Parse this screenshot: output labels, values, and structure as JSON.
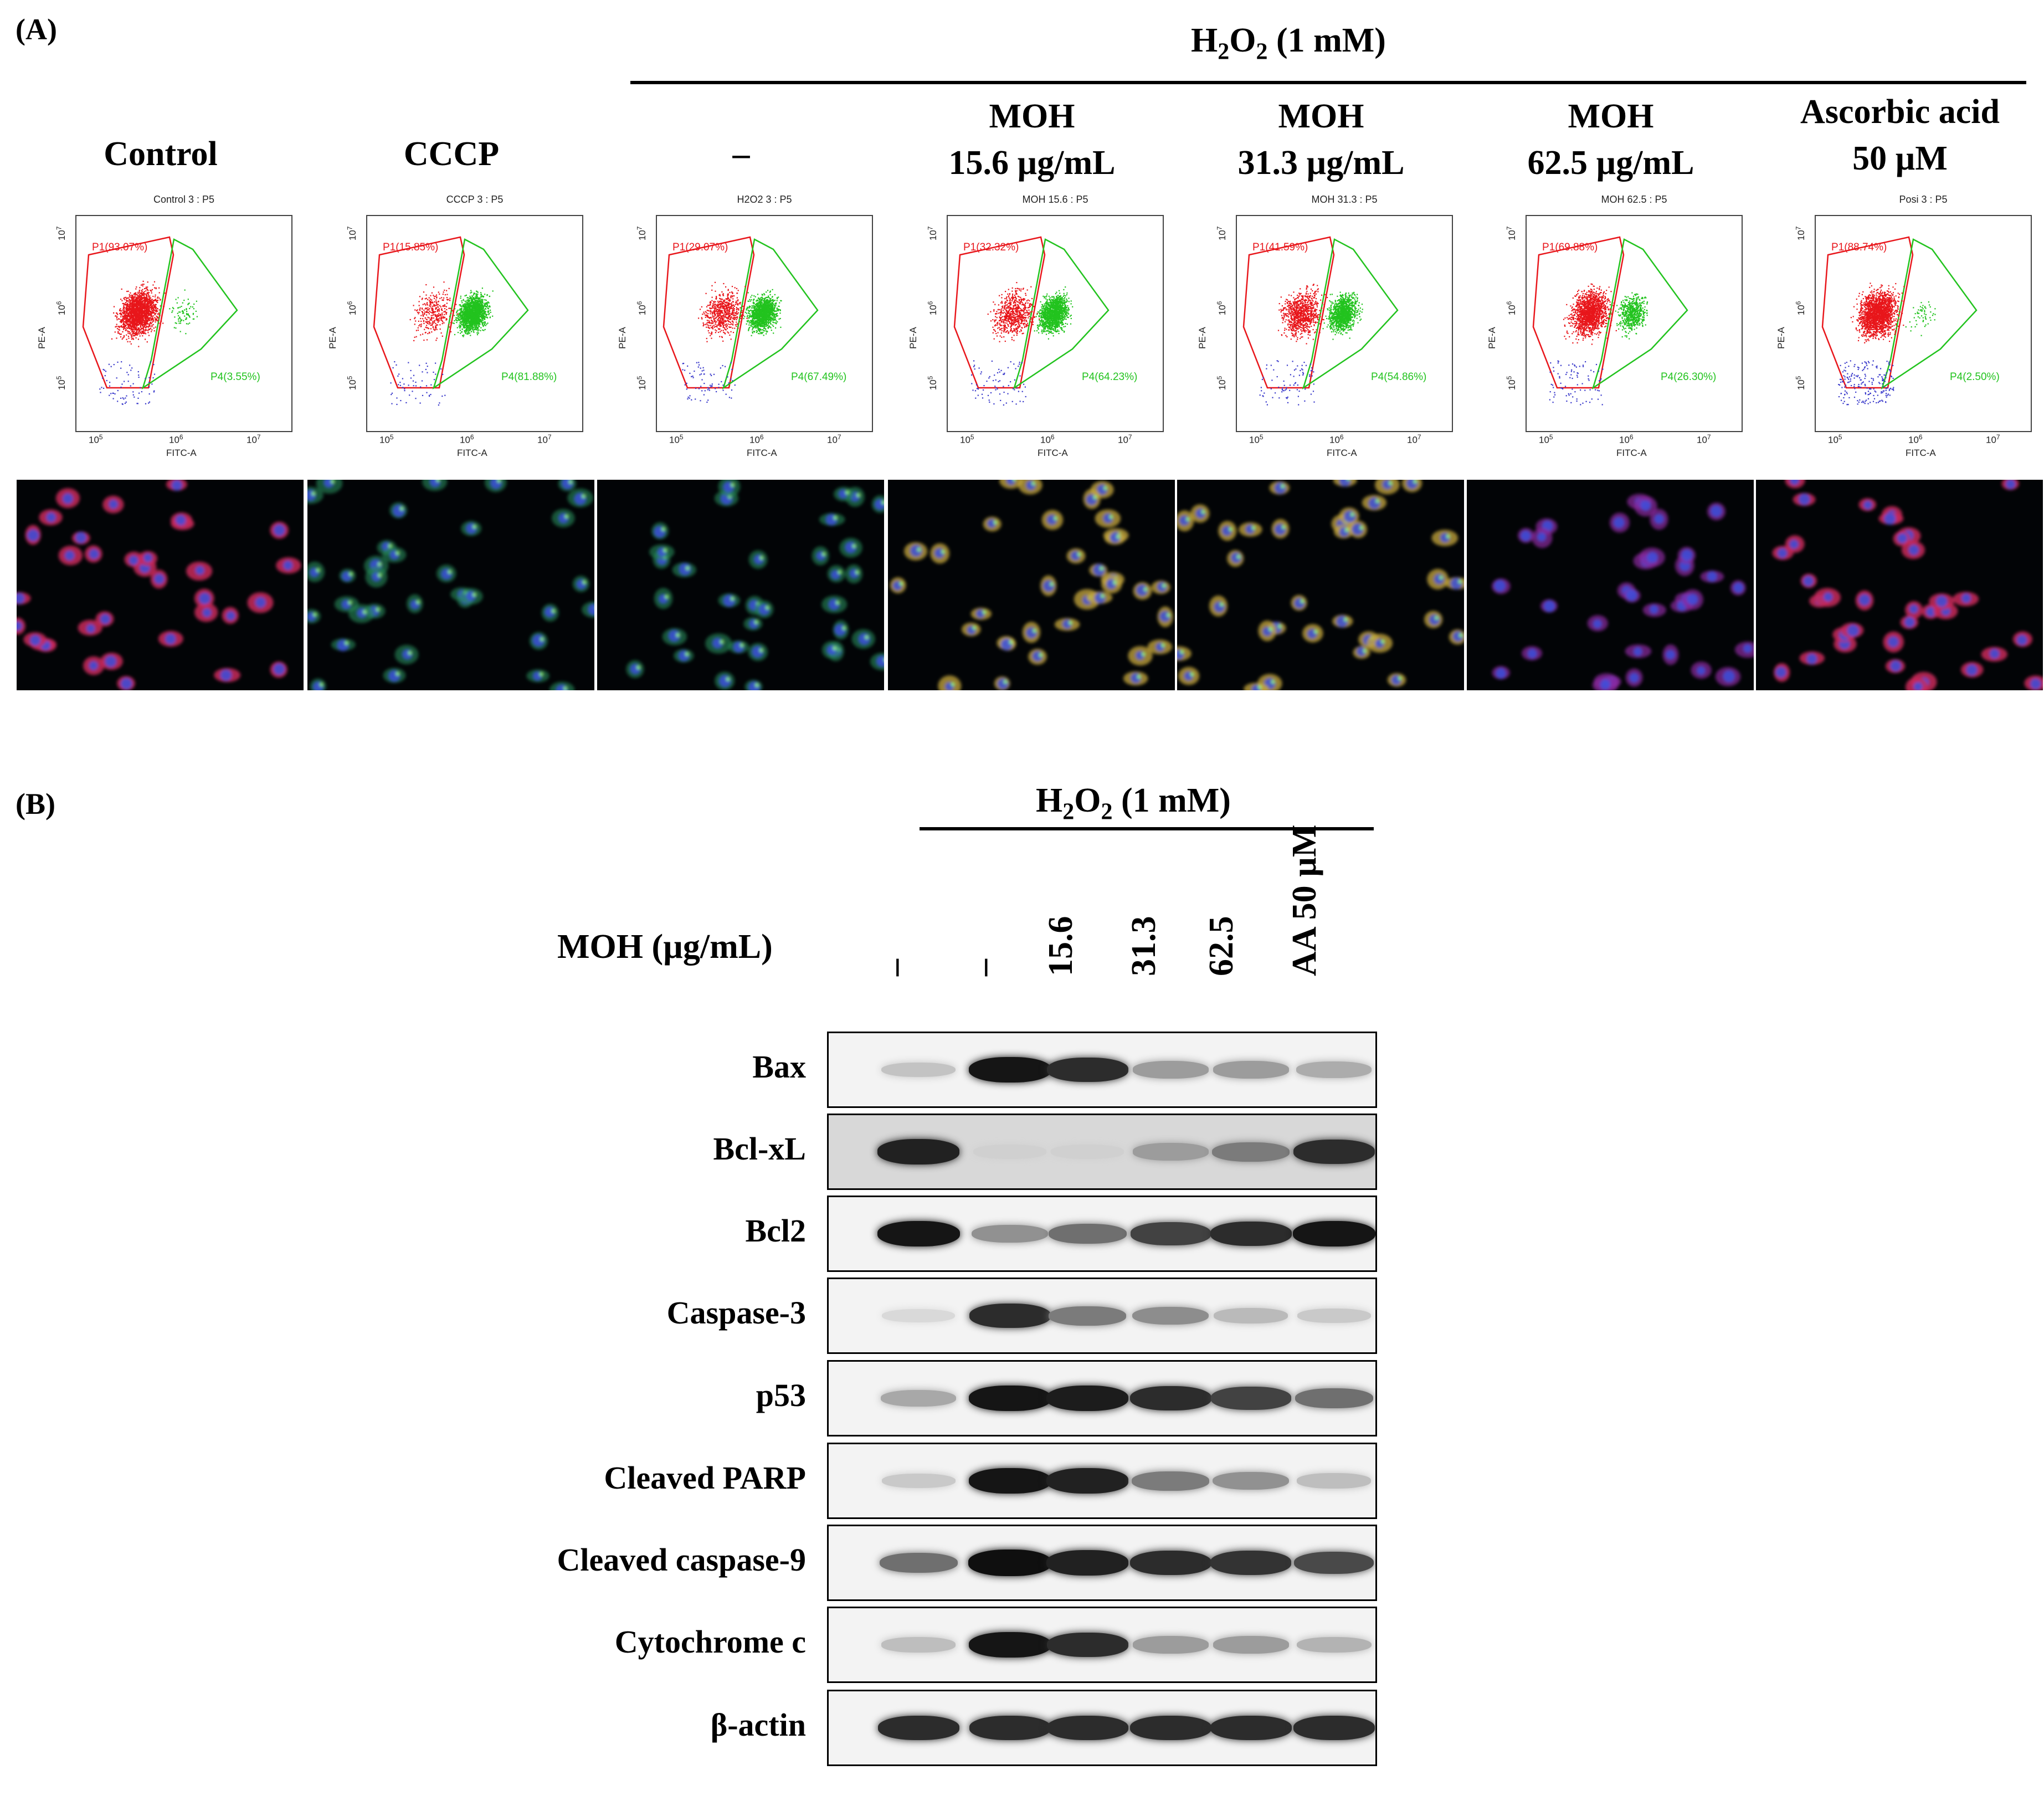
{
  "panel_a": {
    "label": "(A)",
    "h2o2_prefix": "H",
    "h2o2_sub1": "2",
    "h2o2_mid": "O",
    "h2o2_sub2": "2",
    "h2o2_suffix": " (1 mM)",
    "columns": [
      {
        "line1": "Control",
        "line2": "",
        "plot_title": "Control 3 : P5",
        "p1": "P1(93.07%)",
        "p4": "P4(3.55%)",
        "red_fraction": 0.9307,
        "green_fraction": 0.0355
      },
      {
        "line1": "CCCP",
        "line2": "",
        "plot_title": "CCCP 3 : P5",
        "p1": "P1(15.85%)",
        "p4": "P4(81.88%)",
        "red_fraction": 0.1585,
        "green_fraction": 0.8188
      },
      {
        "line1": "–",
        "line2": "",
        "plot_title": "H2O2 3 : P5",
        "p1": "P1(29.07%)",
        "p4": "P4(67.49%)",
        "red_fraction": 0.2907,
        "green_fraction": 0.6749
      },
      {
        "line1": "MOH",
        "line2": "15.6 µg/mL",
        "plot_title": "MOH 15.6 : P5",
        "p1": "P1(32.32%)",
        "p4": "P4(64.23%)",
        "red_fraction": 0.3232,
        "green_fraction": 0.6423
      },
      {
        "line1": "MOH",
        "line2": "31.3 µg/mL",
        "plot_title": "MOH 31.3 : P5",
        "p1": "P1(41.59%)",
        "p4": "P4(54.86%)",
        "red_fraction": 0.4159,
        "green_fraction": 0.5486
      },
      {
        "line1": "MOH",
        "line2": "62.5 µg/mL",
        "plot_title": "MOH 62.5 : P5",
        "p1": "P1(69.88%)",
        "p4": "P4(26.30%)",
        "red_fraction": 0.6988,
        "green_fraction": 0.263
      },
      {
        "line1": "Ascorbic acid",
        "line2": "50 µM",
        "plot_title": "Posi 3 : P5",
        "p1": "P1(88.74%)",
        "p4": "P4(2.50%)",
        "red_fraction": 0.8874,
        "green_fraction": 0.025
      }
    ],
    "axis_x": "FITC-A",
    "axis_y": "PE-A",
    "tick_x": [
      "10",
      "10",
      "10"
    ],
    "tick_x_exp": [
      "5",
      "6",
      "7"
    ],
    "tick_y": [
      "10",
      "10",
      "10"
    ],
    "tick_y_exp": [
      "7",
      "6",
      "5"
    ],
    "colors": {
      "red_gate": "#e8161b",
      "green_gate": "#22c31e",
      "blue_debris": "#3a3acb"
    }
  },
  "panel_b": {
    "label": "(B)",
    "h2o2_prefix": "H",
    "h2o2_sub1": "2",
    "h2o2_mid": "O",
    "h2o2_sub2": "2",
    "h2o2_suffix": " (1 mM)",
    "moh_label": "MOH (µg/mL)",
    "lanes": [
      "–",
      "–",
      "15.6",
      "31.3",
      "62.5",
      "AA 50 µM"
    ],
    "proteins": [
      {
        "name": "Bax",
        "intensity": [
          0.18,
          0.95,
          0.85,
          0.35,
          0.35,
          0.28
        ]
      },
      {
        "name": "Bcl-xL",
        "intensity": [
          0.9,
          0.12,
          0.12,
          0.35,
          0.5,
          0.85
        ]
      },
      {
        "name": "Bcl2",
        "intensity": [
          0.95,
          0.4,
          0.55,
          0.75,
          0.85,
          0.95
        ]
      },
      {
        "name": "Caspase-3",
        "intensity": [
          0.08,
          0.85,
          0.5,
          0.42,
          0.22,
          0.15
        ]
      },
      {
        "name": "p53",
        "intensity": [
          0.3,
          0.95,
          0.92,
          0.85,
          0.75,
          0.55
        ]
      },
      {
        "name": "Cleaved PARP",
        "intensity": [
          0.15,
          0.95,
          0.9,
          0.5,
          0.4,
          0.2
        ]
      },
      {
        "name": "Cleaved caspase-9",
        "intensity": [
          0.55,
          0.98,
          0.9,
          0.85,
          0.82,
          0.72
        ]
      },
      {
        "name": "Cytochrome c",
        "intensity": [
          0.2,
          0.95,
          0.85,
          0.35,
          0.35,
          0.25
        ]
      },
      {
        "name": "β-actin",
        "intensity": [
          0.85,
          0.85,
          0.85,
          0.85,
          0.85,
          0.85
        ]
      }
    ]
  }
}
